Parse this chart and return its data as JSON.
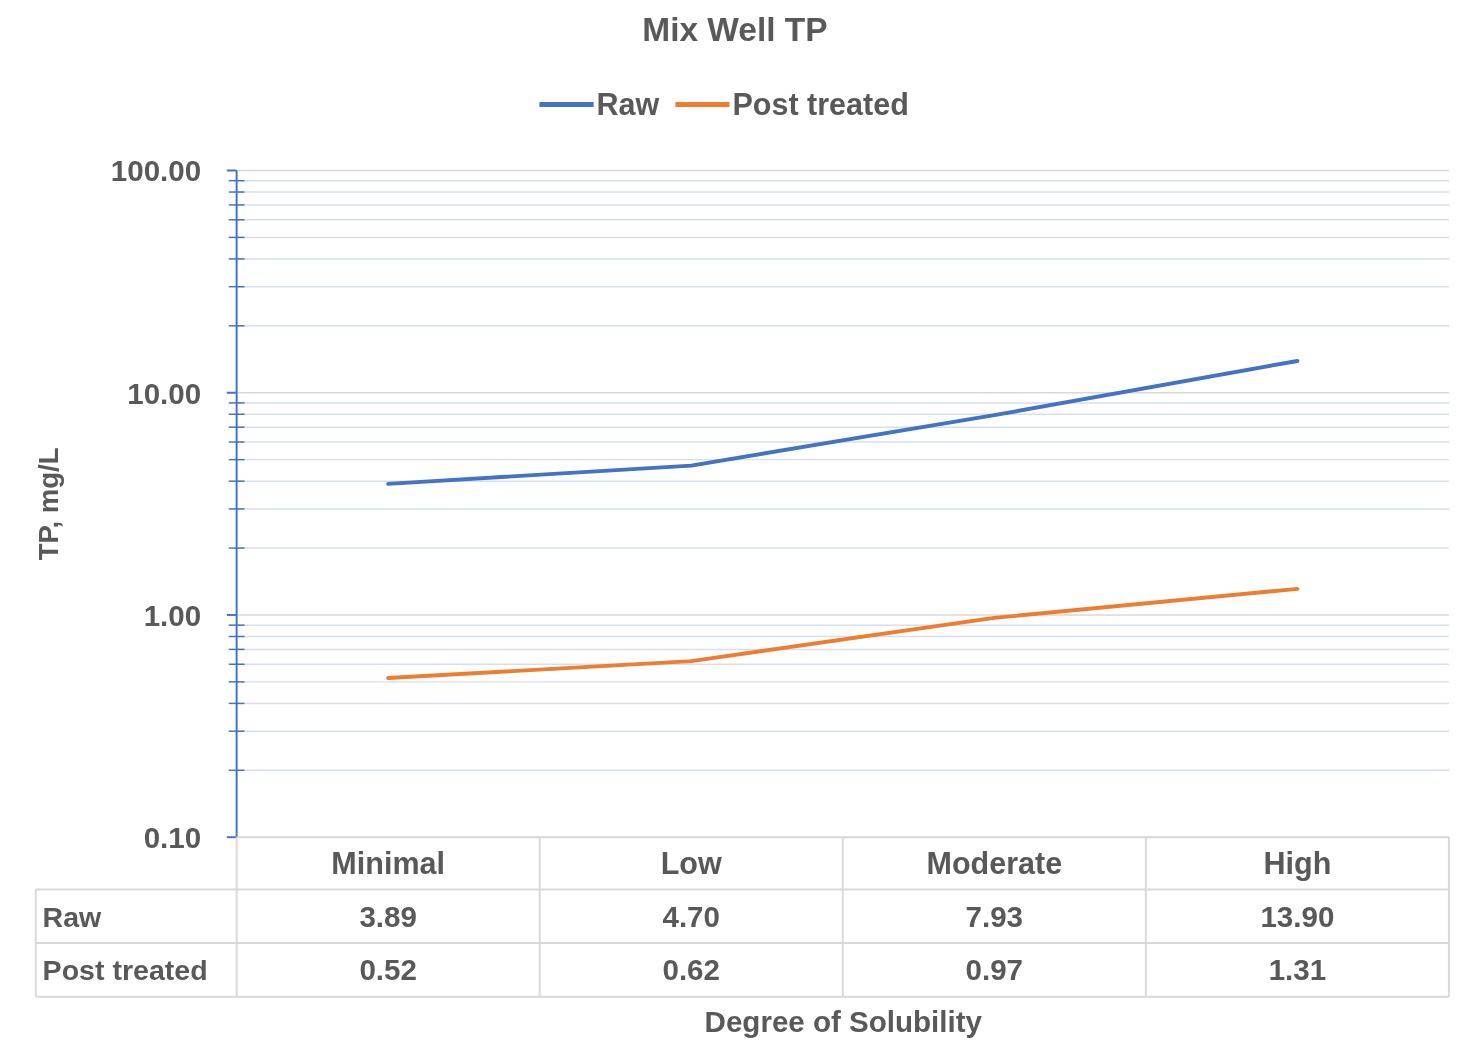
{
  "chart_data": {
    "type": "line",
    "title": "Mix Well TP",
    "xlabel": "Degree of Solubility",
    "ylabel": "TP, mg/L",
    "categories": [
      "Minimal",
      "Low",
      "Moderate",
      "High"
    ],
    "series": [
      {
        "name": "Raw",
        "color": "#4472c4",
        "values": [
          3.89,
          4.7,
          7.93,
          13.9
        ],
        "value_labels": [
          "3.89",
          "4.70",
          "7.93",
          "13.90"
        ]
      },
      {
        "name": "Post treated",
        "color": "#ed7d31",
        "values": [
          0.52,
          0.62,
          0.97,
          1.31
        ],
        "value_labels": [
          "0.52",
          "0.62",
          "0.97",
          "1.31"
        ]
      }
    ],
    "log": "y",
    "ylim": [
      0.1,
      100
    ],
    "yticks": [
      {
        "value": 0.1,
        "label": "0.10"
      },
      {
        "value": 1,
        "label": "1.00"
      },
      {
        "value": 10,
        "label": "10.00"
      },
      {
        "value": 100,
        "label": "100.00"
      }
    ],
    "grid": "y",
    "legend": "top",
    "line_style": "solid"
  }
}
